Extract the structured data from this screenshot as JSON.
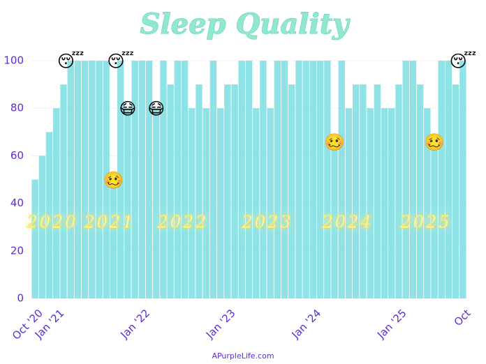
{
  "chart_data": {
    "type": "bar",
    "title": "Sleep Quality",
    "categories": [
      "Oct '20",
      null,
      null,
      "Jan '21",
      null,
      null,
      null,
      null,
      null,
      null,
      null,
      null,
      null,
      null,
      null,
      "Jan '22",
      null,
      null,
      null,
      null,
      null,
      null,
      null,
      null,
      null,
      null,
      null,
      "Jan '23",
      null,
      null,
      null,
      null,
      null,
      null,
      null,
      null,
      null,
      null,
      null,
      "Jan '24",
      null,
      null,
      null,
      null,
      null,
      null,
      null,
      null,
      null,
      null,
      null,
      "Jan '25",
      null,
      null,
      null,
      null,
      null,
      null,
      null,
      null,
      "Oct"
    ],
    "values": [
      50,
      60,
      70,
      80,
      90,
      100,
      100,
      100,
      100,
      100,
      100,
      50,
      100,
      80,
      100,
      100,
      100,
      80,
      100,
      90,
      100,
      100,
      80,
      90,
      80,
      100,
      80,
      90,
      90,
      100,
      100,
      80,
      100,
      80,
      100,
      100,
      90,
      100,
      100,
      100,
      100,
      100,
      66,
      100,
      80,
      90,
      90,
      80,
      90,
      80,
      80,
      90,
      100,
      100,
      90,
      80,
      66,
      100,
      100,
      90,
      100
    ],
    "markers": [
      null,
      null,
      null,
      null,
      null,
      "😴",
      null,
      null,
      null,
      null,
      null,
      "🥴",
      "😴",
      "😷",
      null,
      null,
      null,
      "😷",
      null,
      null,
      null,
      null,
      null,
      null,
      null,
      null,
      null,
      null,
      null,
      null,
      null,
      null,
      null,
      null,
      null,
      null,
      null,
      null,
      null,
      null,
      null,
      null,
      "🥴",
      null,
      null,
      null,
      null,
      null,
      null,
      null,
      null,
      null,
      null,
      null,
      null,
      null,
      "🥴",
      null,
      null,
      null,
      "😴"
    ],
    "year_labels": [
      "2020",
      "2021",
      "2022",
      "2023",
      "2024",
      "2025"
    ],
    "color": "#8fe3e6",
    "ylim": [
      0,
      100
    ],
    "yticks": [
      0,
      20,
      40,
      60,
      80,
      100
    ],
    "grid": true,
    "footer": "APurpleLife.com"
  }
}
